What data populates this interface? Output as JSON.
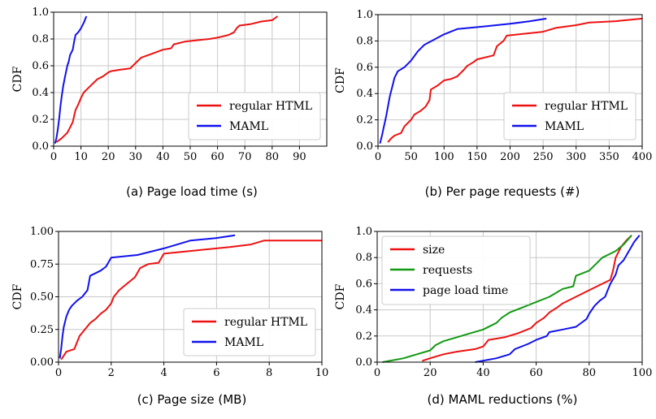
{
  "chart_data": [
    {
      "type": "line",
      "caption": "(a) Page load time (s)",
      "ylabel": "CDF",
      "xlim": [
        0,
        100
      ],
      "ylim": [
        0,
        1.0
      ],
      "xticks": [
        "0",
        "10",
        "20",
        "30",
        "40",
        "50",
        "60",
        "70",
        "80",
        "90"
      ],
      "xtick_values": [
        0,
        10,
        20,
        30,
        40,
        50,
        60,
        70,
        80,
        90
      ],
      "yticks": [
        "0.0",
        "0.2",
        "0.4",
        "0.6",
        "0.8",
        "1.0"
      ],
      "ytick_values": [
        0,
        0.2,
        0.4,
        0.6,
        0.8,
        1.0
      ],
      "grid": true,
      "legend_position": "lower-right",
      "series": [
        {
          "name": "regular HTML",
          "color": "#ee1111",
          "x": [
            1,
            3,
            5,
            6,
            7,
            8,
            9,
            10,
            11,
            12,
            14,
            16,
            18,
            20,
            21,
            24,
            28,
            29,
            32,
            36,
            40,
            43,
            44,
            48,
            52,
            57,
            60,
            64,
            66,
            67,
            68,
            72,
            76,
            80,
            82
          ],
          "y": [
            0.03,
            0.06,
            0.1,
            0.14,
            0.18,
            0.27,
            0.31,
            0.36,
            0.4,
            0.42,
            0.46,
            0.5,
            0.52,
            0.55,
            0.56,
            0.57,
            0.58,
            0.6,
            0.66,
            0.69,
            0.72,
            0.73,
            0.76,
            0.78,
            0.79,
            0.8,
            0.81,
            0.83,
            0.85,
            0.88,
            0.9,
            0.91,
            0.93,
            0.94,
            0.97
          ]
        },
        {
          "name": "MAML",
          "color": "#1111ee",
          "x": [
            0.5,
            1.0,
            1.5,
            2,
            2.5,
            3,
            3.5,
            4,
            4.5,
            5,
            5.5,
            6,
            7,
            7.5,
            8,
            9,
            10,
            11,
            12
          ],
          "y": [
            0.02,
            0.06,
            0.12,
            0.2,
            0.3,
            0.38,
            0.45,
            0.5,
            0.55,
            0.6,
            0.63,
            0.68,
            0.72,
            0.78,
            0.83,
            0.85,
            0.88,
            0.92,
            0.97
          ]
        }
      ]
    },
    {
      "type": "line",
      "caption": "(b) Per page requests (#)",
      "ylabel": "CDF",
      "xlim": [
        0,
        400
      ],
      "ylim": [
        0,
        1.0
      ],
      "xticks": [
        "0",
        "50",
        "100",
        "150",
        "200",
        "250",
        "300",
        "350",
        "400"
      ],
      "xtick_values": [
        0,
        50,
        100,
        150,
        200,
        250,
        300,
        350,
        400
      ],
      "yticks": [
        "0.0",
        "0.2",
        "0.4",
        "0.6",
        "0.8",
        "1.0"
      ],
      "ytick_values": [
        0,
        0.2,
        0.4,
        0.6,
        0.8,
        1.0
      ],
      "grid": true,
      "legend_position": "lower-right",
      "series": [
        {
          "name": "regular HTML",
          "color": "#ee1111",
          "x": [
            15,
            20,
            25,
            35,
            40,
            50,
            55,
            65,
            72,
            78,
            80,
            90,
            100,
            110,
            120,
            130,
            135,
            145,
            150,
            175,
            180,
            190,
            195,
            250,
            270,
            300,
            320,
            360,
            400
          ],
          "y": [
            0.03,
            0.06,
            0.08,
            0.1,
            0.15,
            0.2,
            0.24,
            0.27,
            0.3,
            0.35,
            0.43,
            0.46,
            0.5,
            0.51,
            0.53,
            0.58,
            0.61,
            0.64,
            0.66,
            0.69,
            0.76,
            0.8,
            0.84,
            0.87,
            0.9,
            0.92,
            0.94,
            0.95,
            0.97
          ]
        },
        {
          "name": "MAML",
          "color": "#1111ee",
          "x": [
            3,
            6,
            9,
            12,
            15,
            18,
            22,
            25,
            30,
            40,
            50,
            60,
            70,
            85,
            100,
            120,
            160,
            200,
            230,
            255
          ],
          "y": [
            0.02,
            0.08,
            0.15,
            0.22,
            0.3,
            0.38,
            0.46,
            0.52,
            0.57,
            0.6,
            0.65,
            0.72,
            0.77,
            0.81,
            0.85,
            0.89,
            0.91,
            0.93,
            0.95,
            0.97
          ]
        }
      ]
    },
    {
      "type": "line",
      "caption": "(c) Page size (MB)",
      "ylabel": "CDF",
      "xlim": [
        0,
        10
      ],
      "ylim": [
        0,
        1.0
      ],
      "xticks": [
        "0",
        "2",
        "4",
        "6",
        "8",
        "10"
      ],
      "xtick_values": [
        0,
        2,
        4,
        6,
        8,
        10
      ],
      "yticks": [
        "0.00",
        "0.25",
        "0.50",
        "0.75",
        "1.00"
      ],
      "ytick_values": [
        0,
        0.25,
        0.5,
        0.75,
        1.0
      ],
      "grid": true,
      "legend_position": "lower-right",
      "series": [
        {
          "name": "regular HTML",
          "color": "#ee1111",
          "x": [
            0.1,
            0.2,
            0.3,
            0.6,
            0.8,
            1.0,
            1.2,
            1.4,
            1.6,
            1.8,
            2.0,
            2.1,
            2.3,
            2.6,
            2.9,
            3.1,
            3.4,
            3.8,
            4.0,
            4.5,
            5.5,
            6.5,
            7.3,
            7.8,
            10
          ],
          "y": [
            0.02,
            0.05,
            0.08,
            0.1,
            0.2,
            0.25,
            0.3,
            0.33,
            0.37,
            0.4,
            0.45,
            0.5,
            0.55,
            0.6,
            0.65,
            0.72,
            0.75,
            0.76,
            0.83,
            0.84,
            0.86,
            0.88,
            0.9,
            0.93,
            0.93
          ]
        },
        {
          "name": "MAML",
          "color": "#1111ee",
          "x": [
            0.05,
            0.1,
            0.15,
            0.2,
            0.3,
            0.4,
            0.5,
            0.7,
            0.9,
            1.1,
            1.2,
            1.6,
            1.8,
            2.0,
            3.0,
            4.0,
            5.0,
            6.0,
            6.7
          ],
          "y": [
            0.03,
            0.1,
            0.2,
            0.27,
            0.35,
            0.4,
            0.43,
            0.47,
            0.5,
            0.55,
            0.66,
            0.7,
            0.73,
            0.8,
            0.82,
            0.87,
            0.93,
            0.95,
            0.97
          ]
        }
      ]
    },
    {
      "type": "line",
      "caption": "(d) MAML reductions (%)",
      "ylabel": "CDF",
      "xlim": [
        0,
        100
      ],
      "ylim": [
        0,
        1.0
      ],
      "xticks": [
        "0",
        "20",
        "40",
        "60",
        "80",
        "100"
      ],
      "xtick_values": [
        0,
        20,
        40,
        60,
        80,
        100
      ],
      "yticks": [
        "0.0",
        "0.2",
        "0.4",
        "0.6",
        "0.8",
        "1.0"
      ],
      "ytick_values": [
        0,
        0.2,
        0.4,
        0.6,
        0.8,
        1.0
      ],
      "grid": true,
      "legend_position": "upper-left",
      "series": [
        {
          "name": "size",
          "color": "#ee1111",
          "x": [
            17,
            20,
            25,
            30,
            37,
            40,
            42,
            48,
            53,
            58,
            60,
            63,
            65,
            68,
            70,
            75,
            80,
            85,
            88,
            89,
            90,
            92,
            94,
            96
          ],
          "y": [
            0.01,
            0.03,
            0.06,
            0.08,
            0.1,
            0.12,
            0.17,
            0.19,
            0.22,
            0.26,
            0.3,
            0.34,
            0.38,
            0.42,
            0.45,
            0.5,
            0.55,
            0.6,
            0.63,
            0.7,
            0.8,
            0.88,
            0.93,
            0.97
          ]
        },
        {
          "name": "requests",
          "color": "#119911",
          "x": [
            2,
            10,
            15,
            20,
            22,
            25,
            30,
            35,
            40,
            45,
            47,
            50,
            55,
            60,
            65,
            70,
            74,
            75,
            80,
            85,
            87,
            90,
            93,
            96
          ],
          "y": [
            0.0,
            0.03,
            0.06,
            0.09,
            0.13,
            0.16,
            0.19,
            0.22,
            0.25,
            0.3,
            0.34,
            0.38,
            0.42,
            0.46,
            0.5,
            0.56,
            0.58,
            0.66,
            0.7,
            0.8,
            0.82,
            0.85,
            0.9,
            0.97
          ]
        },
        {
          "name": "page load time",
          "color": "#1111ee",
          "x": [
            37,
            45,
            50,
            52,
            57,
            60,
            64,
            65,
            70,
            75,
            79,
            80,
            82,
            84,
            86,
            87,
            88,
            90,
            91,
            93,
            95,
            97,
            99
          ],
          "y": [
            0.0,
            0.03,
            0.06,
            0.1,
            0.14,
            0.17,
            0.2,
            0.23,
            0.25,
            0.27,
            0.33,
            0.37,
            0.43,
            0.47,
            0.5,
            0.55,
            0.6,
            0.67,
            0.74,
            0.78,
            0.85,
            0.92,
            0.97
          ]
        }
      ]
    }
  ]
}
